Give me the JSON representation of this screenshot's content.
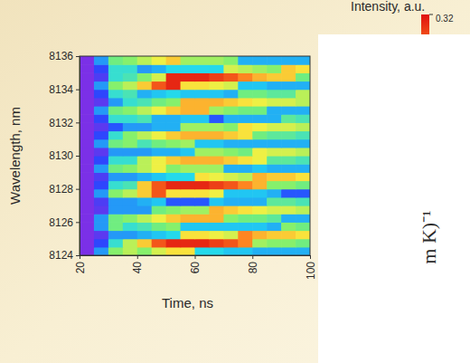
{
  "chart_data": {
    "type": "heatmap",
    "x_label": "Time, ns",
    "y_label": "Wavelength, nm",
    "x": [
      22.5,
      27.5,
      32.5,
      37.5,
      42.5,
      47.5,
      52.5,
      57.5,
      62.5,
      67.5,
      72.5,
      77.5,
      82.5,
      87.5,
      92.5,
      97.5
    ],
    "y": [
      8124.25,
      8124.75,
      8125.25,
      8125.75,
      8126.25,
      8126.75,
      8127.25,
      8127.75,
      8128.25,
      8128.75,
      8129.25,
      8129.75,
      8130.25,
      8130.75,
      8131.25,
      8131.75,
      8132.25,
      8132.75,
      8133.25,
      8133.75,
      8134.25,
      8134.75,
      8135.25,
      8135.75
    ],
    "z": [
      [
        0.01,
        0.1,
        0.18,
        0.2,
        0.18,
        0.21,
        0.23,
        0.23,
        0.13,
        0.13,
        0.12,
        0.12,
        0.11,
        0.11,
        0.11,
        0.11
      ],
      [
        0.01,
        0.06,
        0.14,
        0.2,
        0.24,
        0.29,
        0.31,
        0.31,
        0.31,
        0.3,
        0.29,
        0.27,
        0.19,
        0.18,
        0.18,
        0.17
      ],
      [
        0.01,
        0.03,
        0.1,
        0.1,
        0.11,
        0.12,
        0.13,
        0.23,
        0.23,
        0.22,
        0.21,
        0.27,
        0.25,
        0.24,
        0.24,
        0.23
      ],
      [
        0.01,
        0.1,
        0.17,
        0.14,
        0.15,
        0.17,
        0.18,
        0.12,
        0.12,
        0.12,
        0.12,
        0.12,
        0.12,
        0.11,
        0.18,
        0.17
      ],
      [
        0.01,
        0.1,
        0.17,
        0.18,
        0.2,
        0.22,
        0.24,
        0.25,
        0.25,
        0.25,
        0.18,
        0.17,
        0.17,
        0.16,
        0.11,
        0.11
      ],
      [
        0.01,
        0.03,
        0.1,
        0.1,
        0.1,
        0.17,
        0.18,
        0.19,
        0.19,
        0.25,
        0.24,
        0.23,
        0.22,
        0.21,
        0.21,
        0.2
      ],
      [
        0.01,
        0.04,
        0.1,
        0.1,
        0.11,
        0.12,
        0.07,
        0.07,
        0.07,
        0.12,
        0.11,
        0.11,
        0.11,
        0.16,
        0.16,
        0.15
      ],
      [
        0.01,
        0.1,
        0.18,
        0.2,
        0.24,
        0.29,
        0.23,
        0.23,
        0.23,
        0.22,
        0.12,
        0.12,
        0.12,
        0.11,
        0.07,
        0.07
      ],
      [
        0.01,
        0.06,
        0.14,
        0.15,
        0.24,
        0.29,
        0.31,
        0.31,
        0.31,
        0.3,
        0.29,
        0.27,
        0.25,
        0.18,
        0.18,
        0.17
      ],
      [
        0.01,
        0.04,
        0.1,
        0.1,
        0.11,
        0.12,
        0.13,
        0.13,
        0.23,
        0.22,
        0.21,
        0.2,
        0.25,
        0.24,
        0.24,
        0.23
      ],
      [
        0.01,
        0.1,
        0.17,
        0.18,
        0.2,
        0.22,
        0.18,
        0.19,
        0.19,
        0.19,
        0.11,
        0.11,
        0.12,
        0.11,
        0.11,
        0.11
      ],
      [
        0.01,
        0.06,
        0.14,
        0.14,
        0.2,
        0.22,
        0.24,
        0.25,
        0.25,
        0.25,
        0.24,
        0.23,
        0.22,
        0.16,
        0.16,
        0.15
      ],
      [
        0.01,
        0.03,
        0.1,
        0.1,
        0.1,
        0.11,
        0.11,
        0.12,
        0.19,
        0.19,
        0.18,
        0.17,
        0.22,
        0.21,
        0.21,
        0.2
      ],
      [
        0.01,
        0.1,
        0.17,
        0.18,
        0.15,
        0.17,
        0.18,
        0.19,
        0.12,
        0.12,
        0.11,
        0.11,
        0.11,
        0.11,
        0.11,
        0.11
      ],
      [
        0.01,
        0.06,
        0.14,
        0.18,
        0.2,
        0.22,
        0.24,
        0.25,
        0.25,
        0.25,
        0.24,
        0.23,
        0.17,
        0.16,
        0.16,
        0.15
      ],
      [
        0.01,
        0.03,
        0.07,
        0.1,
        0.1,
        0.11,
        0.11,
        0.19,
        0.19,
        0.19,
        0.18,
        0.23,
        0.22,
        0.21,
        0.21,
        0.2
      ],
      [
        0.01,
        0.06,
        0.14,
        0.14,
        0.15,
        0.11,
        0.11,
        0.12,
        0.12,
        0.07,
        0.11,
        0.11,
        0.11,
        0.11,
        0.16,
        0.15
      ],
      [
        0.01,
        0.1,
        0.17,
        0.18,
        0.2,
        0.22,
        0.24,
        0.25,
        0.25,
        0.19,
        0.18,
        0.17,
        0.17,
        0.11,
        0.11,
        0.11
      ],
      [
        0.01,
        0.03,
        0.1,
        0.14,
        0.15,
        0.17,
        0.18,
        0.25,
        0.25,
        0.25,
        0.24,
        0.23,
        0.22,
        0.21,
        0.21,
        0.2
      ],
      [
        0.01,
        0.06,
        0.14,
        0.15,
        0.11,
        0.12,
        0.13,
        0.12,
        0.12,
        0.12,
        0.11,
        0.17,
        0.17,
        0.16,
        0.16,
        0.2
      ],
      [
        0.01,
        0.1,
        0.18,
        0.2,
        0.24,
        0.29,
        0.31,
        0.23,
        0.23,
        0.22,
        0.21,
        0.12,
        0.12,
        0.11,
        0.11,
        0.11
      ],
      [
        0.01,
        0.04,
        0.14,
        0.15,
        0.18,
        0.21,
        0.31,
        0.31,
        0.31,
        0.3,
        0.29,
        0.27,
        0.25,
        0.24,
        0.24,
        0.17
      ],
      [
        0.01,
        0.06,
        0.14,
        0.14,
        0.1,
        0.11,
        0.13,
        0.13,
        0.13,
        0.13,
        0.21,
        0.2,
        0.19,
        0.18,
        0.24,
        0.23
      ],
      [
        0.01,
        0.1,
        0.17,
        0.18,
        0.2,
        0.22,
        0.24,
        0.19,
        0.19,
        0.19,
        0.18,
        0.11,
        0.11,
        0.11,
        0.11,
        0.11
      ]
    ],
    "xlim": [
      20,
      100
    ],
    "ylim": [
      8124,
      8136
    ],
    "xticks": [
      20,
      40,
      60,
      80,
      100
    ],
    "yticks": [
      8124,
      8126,
      8128,
      8130,
      8132,
      8134,
      8136
    ],
    "colorbar": {
      "label": "Intensity, a.u.",
      "range": [
        0,
        0.32
      ],
      "ticks": [
        0.32
      ]
    },
    "annotations": [
      "m K)⁻¹"
    ]
  }
}
